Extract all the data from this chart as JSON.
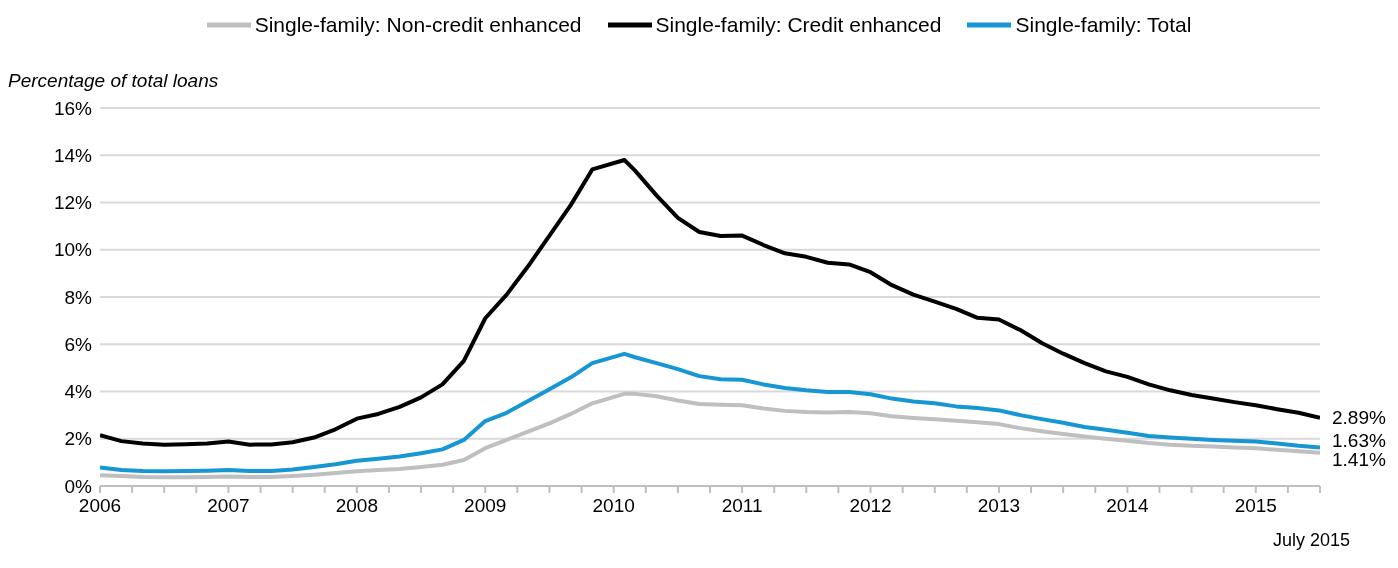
{
  "chart_data": {
    "type": "line",
    "ylabel": "Percentage of total loans",
    "x": [
      "2006-01",
      "2006-03",
      "2006-05",
      "2006-07",
      "2006-09",
      "2006-11",
      "2007-01",
      "2007-03",
      "2007-05",
      "2007-07",
      "2007-09",
      "2007-11",
      "2008-01",
      "2008-03",
      "2008-05",
      "2008-07",
      "2008-09",
      "2008-11",
      "2009-01",
      "2009-03",
      "2009-05",
      "2009-07",
      "2009-09",
      "2009-11",
      "2010-02",
      "2010-03",
      "2010-05",
      "2010-07",
      "2010-09",
      "2010-11",
      "2011-01",
      "2011-03",
      "2011-05",
      "2011-07",
      "2011-09",
      "2011-11",
      "2012-01",
      "2012-03",
      "2012-05",
      "2012-07",
      "2012-09",
      "2012-11",
      "2013-01",
      "2013-03",
      "2013-05",
      "2013-07",
      "2013-09",
      "2013-11",
      "2014-01",
      "2014-03",
      "2014-05",
      "2014-07",
      "2014-09",
      "2014-11",
      "2015-01",
      "2015-03",
      "2015-05",
      "2015-07"
    ],
    "series": [
      {
        "name": "Single-family: Non-credit enhanced",
        "color": "#bfbfbf",
        "values": [
          0.45,
          0.42,
          0.38,
          0.37,
          0.37,
          0.38,
          0.4,
          0.38,
          0.38,
          0.42,
          0.48,
          0.55,
          0.62,
          0.68,
          0.72,
          0.8,
          0.9,
          1.1,
          1.6,
          1.95,
          2.3,
          2.65,
          3.05,
          3.5,
          3.9,
          3.9,
          3.8,
          3.62,
          3.47,
          3.44,
          3.42,
          3.28,
          3.18,
          3.13,
          3.11,
          3.13,
          3.08,
          2.95,
          2.88,
          2.83,
          2.76,
          2.7,
          2.62,
          2.45,
          2.32,
          2.2,
          2.1,
          2.0,
          1.92,
          1.82,
          1.75,
          1.7,
          1.67,
          1.63,
          1.6,
          1.53,
          1.47,
          1.41
        ]
      },
      {
        "name": "Single-family: Credit enhanced",
        "color": "#000000",
        "values": [
          2.15,
          1.9,
          1.8,
          1.75,
          1.77,
          1.8,
          1.88,
          1.75,
          1.76,
          1.85,
          2.05,
          2.4,
          2.85,
          3.05,
          3.35,
          3.75,
          4.3,
          5.3,
          7.1,
          8.1,
          9.3,
          10.6,
          11.9,
          13.4,
          13.8,
          13.35,
          12.3,
          11.35,
          10.75,
          10.58,
          10.6,
          10.2,
          9.85,
          9.7,
          9.45,
          9.38,
          9.05,
          8.5,
          8.1,
          7.8,
          7.5,
          7.12,
          7.05,
          6.6,
          6.05,
          5.6,
          5.2,
          4.85,
          4.62,
          4.3,
          4.05,
          3.85,
          3.7,
          3.55,
          3.42,
          3.25,
          3.1,
          2.89
        ]
      },
      {
        "name": "Single-family: Total",
        "color": "#1696d2",
        "values": [
          0.78,
          0.68,
          0.63,
          0.62,
          0.63,
          0.65,
          0.68,
          0.63,
          0.64,
          0.7,
          0.8,
          0.92,
          1.07,
          1.15,
          1.25,
          1.39,
          1.55,
          1.95,
          2.75,
          3.1,
          3.6,
          4.1,
          4.6,
          5.2,
          5.59,
          5.45,
          5.2,
          4.95,
          4.65,
          4.52,
          4.5,
          4.3,
          4.15,
          4.05,
          3.98,
          3.98,
          3.88,
          3.7,
          3.58,
          3.5,
          3.37,
          3.3,
          3.2,
          3.0,
          2.83,
          2.68,
          2.5,
          2.38,
          2.25,
          2.12,
          2.05,
          2.0,
          1.95,
          1.92,
          1.88,
          1.8,
          1.7,
          1.63
        ]
      }
    ],
    "xlim": [
      "2006-01",
      "2015-07"
    ],
    "xticks": [
      {
        "value": "2006",
        "label": "2006"
      },
      {
        "value": "2006-04",
        "label": null
      },
      {
        "value": "2006-07",
        "label": null
      },
      {
        "value": "2006-10",
        "label": null
      },
      {
        "value": "2007",
        "label": "2007"
      },
      {
        "value": "2007-04",
        "label": null
      },
      {
        "value": "2007-07",
        "label": null
      },
      {
        "value": "2007-10",
        "label": null
      },
      {
        "value": "2008",
        "label": "2008"
      },
      {
        "value": "2008-04",
        "label": null
      },
      {
        "value": "2008-07",
        "label": null
      },
      {
        "value": "2008-10",
        "label": null
      },
      {
        "value": "2009",
        "label": "2009"
      },
      {
        "value": "2009-04",
        "label": null
      },
      {
        "value": "2009-07",
        "label": null
      },
      {
        "value": "2009-10",
        "label": null
      },
      {
        "value": "2010",
        "label": "2010"
      },
      {
        "value": "2010-04",
        "label": null
      },
      {
        "value": "2010-07",
        "label": null
      },
      {
        "value": "2010-10",
        "label": null
      },
      {
        "value": "2011",
        "label": "2011"
      },
      {
        "value": "2011-04",
        "label": null
      },
      {
        "value": "2011-07",
        "label": null
      },
      {
        "value": "2011-10",
        "label": null
      },
      {
        "value": "2012",
        "label": "2012"
      },
      {
        "value": "2012-04",
        "label": null
      },
      {
        "value": "2012-07",
        "label": null
      },
      {
        "value": "2012-10",
        "label": null
      },
      {
        "value": "2013",
        "label": "2013"
      },
      {
        "value": "2013-04",
        "label": null
      },
      {
        "value": "2013-07",
        "label": null
      },
      {
        "value": "2013-10",
        "label": null
      },
      {
        "value": "2014",
        "label": "2014"
      },
      {
        "value": "2014-04",
        "label": null
      },
      {
        "value": "2014-07",
        "label": null
      },
      {
        "value": "2014-10",
        "label": null
      },
      {
        "value": "2015",
        "label": "2015"
      },
      {
        "value": "2015-04",
        "label": null
      },
      {
        "value": "2015-07",
        "label": null
      }
    ],
    "ylim": [
      0,
      16
    ],
    "yticks": [
      {
        "value": 0,
        "label": "0%"
      },
      {
        "value": 2,
        "label": "2%"
      },
      {
        "value": 4,
        "label": "4%"
      },
      {
        "value": 6,
        "label": "6%"
      },
      {
        "value": 8,
        "label": "8%"
      },
      {
        "value": 10,
        "label": "10%"
      },
      {
        "value": 12,
        "label": "12%"
      },
      {
        "value": 14,
        "label": "14%"
      },
      {
        "value": 16,
        "label": "16%"
      }
    ],
    "grid": "y",
    "legend": "top",
    "marker": "none",
    "line_style": "solid",
    "annotations": [
      {
        "text": "2.89%",
        "x": "2015-07",
        "y": 2.89
      },
      {
        "text": "1.63%",
        "x": "2015-07",
        "y": 1.63
      },
      {
        "text": "1.41%",
        "x": "2015-07",
        "y": 1.41
      },
      "July 2015"
    ]
  }
}
